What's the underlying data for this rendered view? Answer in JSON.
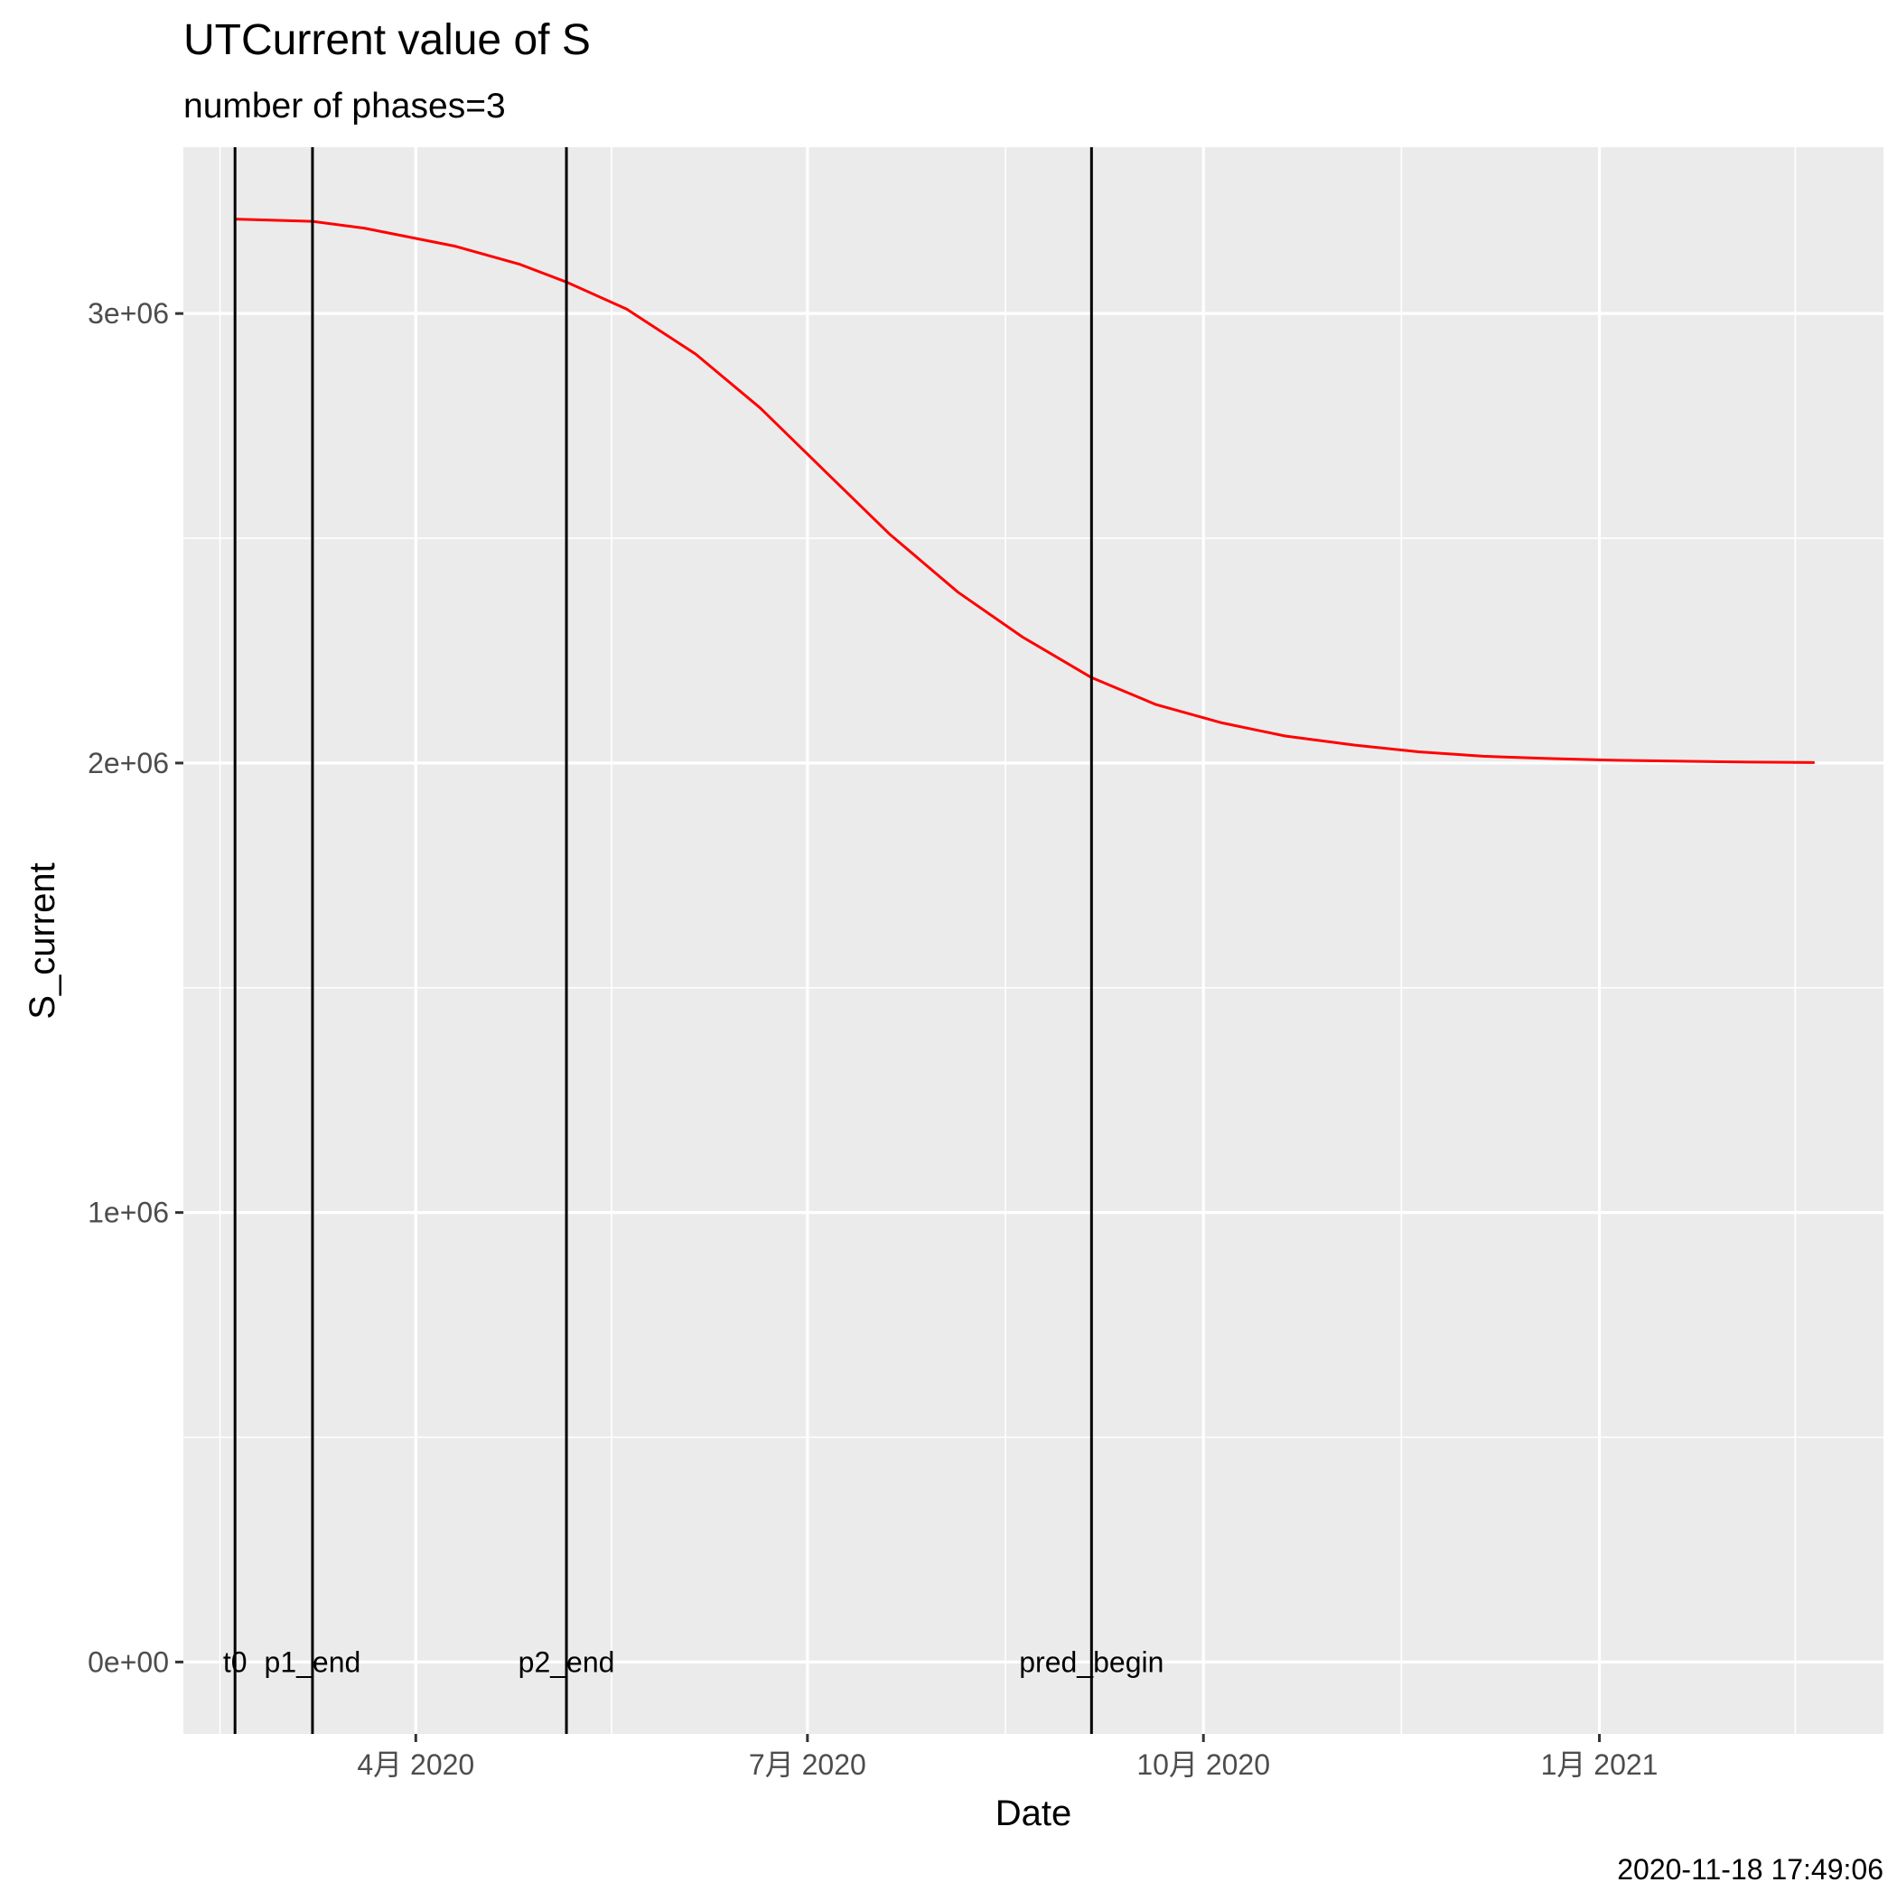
{
  "chart_data": {
    "type": "line",
    "title": "UTCurrent value of S",
    "subtitle": "number of phases=3",
    "xlabel": "Date",
    "ylabel": "S_current",
    "caption": "2020-11-18 17:49:06",
    "grid": true,
    "background": "#ebebeb",
    "xlim": [
      "2020-02-07",
      "2021-03-08"
    ],
    "ylim": [
      -160000,
      3370000
    ],
    "x_ticks": [
      {
        "date": "2020-04-01",
        "label": "4月 2020"
      },
      {
        "date": "2020-07-01",
        "label": "7月 2020"
      },
      {
        "date": "2020-10-01",
        "label": "10月 2020"
      },
      {
        "date": "2021-01-01",
        "label": "1月 2021"
      }
    ],
    "y_ticks": [
      {
        "value": 0,
        "label": "0e+00"
      },
      {
        "value": 1000000,
        "label": "1e+06"
      },
      {
        "value": 2000000,
        "label": "2e+06"
      },
      {
        "value": 3000000,
        "label": "3e+06"
      }
    ],
    "vlines": [
      {
        "date": "2020-02-19",
        "label": "t0"
      },
      {
        "date": "2020-03-08",
        "label": "p1_end"
      },
      {
        "date": "2020-05-06",
        "label": "p2_end"
      },
      {
        "date": "2020-09-05",
        "label": "pred_begin"
      }
    ],
    "series": [
      {
        "color": "#ff0000",
        "x": [
          "2020-02-19",
          "2020-03-08",
          "2020-03-20",
          "2020-04-10",
          "2020-04-25",
          "2020-05-06",
          "2020-05-20",
          "2020-06-05",
          "2020-06-20",
          "2020-07-05",
          "2020-07-20",
          "2020-08-05",
          "2020-08-20",
          "2020-09-05",
          "2020-09-20",
          "2020-10-05",
          "2020-10-20",
          "2020-11-05",
          "2020-11-20",
          "2020-12-05",
          "2020-12-20",
          "2021-01-05",
          "2021-01-20",
          "2021-02-05",
          "2021-02-20"
        ],
        "y": [
          3210000,
          3205000,
          3190000,
          3150000,
          3110000,
          3070000,
          3010000,
          2910000,
          2790000,
          2650000,
          2510000,
          2380000,
          2280000,
          2190000,
          2130000,
          2090000,
          2060000,
          2040000,
          2025000,
          2015000,
          2010000,
          2006000,
          2004000,
          2002000,
          2001000
        ]
      }
    ]
  }
}
